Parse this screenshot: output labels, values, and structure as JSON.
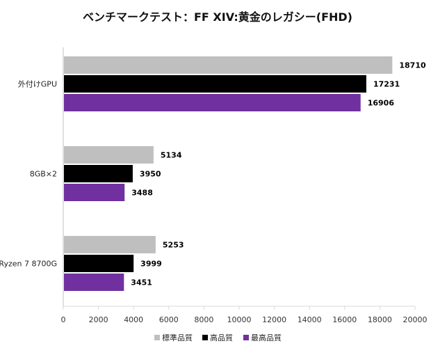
{
  "chart_data": {
    "type": "bar",
    "orientation": "horizontal",
    "title": "ベンチマークテスト：FF XIV:黄金のレガシー(FHD)",
    "categories": [
      "外付けGPU",
      "8GB×2",
      "Ryzen 7 8700G"
    ],
    "series": [
      {
        "name": "標準品質",
        "color": "#bfbfbf",
        "values": [
          18710,
          5134,
          5253
        ]
      },
      {
        "name": "高品質",
        "color": "#000000",
        "values": [
          17231,
          3950,
          3999
        ]
      },
      {
        "name": "最高品質",
        "color": "#7030a0",
        "values": [
          16906,
          3488,
          3451
        ]
      }
    ],
    "x_ticks": [
      0,
      2000,
      4000,
      6000,
      8000,
      10000,
      12000,
      14000,
      16000,
      18000,
      20000
    ],
    "xlim": [
      0,
      20000
    ],
    "xlabel": "",
    "ylabel": "",
    "grid": false,
    "legend_position": "bottom"
  }
}
